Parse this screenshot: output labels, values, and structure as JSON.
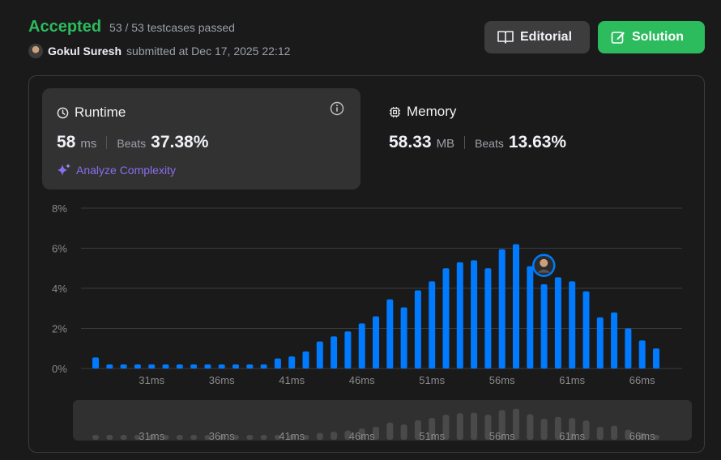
{
  "status": {
    "verdict": "Accepted",
    "tests": "53 / 53 testcases passed"
  },
  "submission": {
    "user": "Gokul Suresh",
    "submitted_at": "submitted at Dec 17, 2025 22:12"
  },
  "buttons": {
    "editorial": "Editorial",
    "solution": "Solution"
  },
  "runtime": {
    "title": "Runtime",
    "value": "58",
    "unit": "ms",
    "beats_label": "Beats",
    "beats": "37.38%",
    "analyze": "Analyze Complexity"
  },
  "memory": {
    "title": "Memory",
    "value": "58.33",
    "unit": "MB",
    "beats_label": "Beats",
    "beats": "13.63%"
  },
  "colors": {
    "accent_green": "#2cbb5d",
    "bar_blue": "#007aff",
    "analyze_purple": "#8a6ef0"
  },
  "chart_data": {
    "type": "bar",
    "xlabel": "",
    "ylabel": "",
    "ylim": [
      0,
      8
    ],
    "yticks": [
      "8%",
      "6%",
      "4%",
      "2%",
      "0%"
    ],
    "xtick_labels": [
      "31ms",
      "36ms",
      "41ms",
      "46ms",
      "51ms",
      "56ms",
      "61ms",
      "66ms"
    ],
    "xtick_values": [
      31,
      36,
      41,
      46,
      51,
      56,
      61,
      66
    ],
    "x": [
      27,
      28,
      29,
      30,
      31,
      32,
      33,
      34,
      35,
      36,
      37,
      38,
      39,
      40,
      41,
      42,
      43,
      44,
      45,
      46,
      47,
      48,
      49,
      50,
      51,
      52,
      53,
      54,
      55,
      56,
      57,
      58,
      59,
      60,
      61,
      62,
      63,
      64,
      65,
      66,
      67
    ],
    "values": [
      0.55,
      0.2,
      0.2,
      0.2,
      0.2,
      0.2,
      0.2,
      0.2,
      0.2,
      0.2,
      0.2,
      0.2,
      0.2,
      0.5,
      0.6,
      0.85,
      1.35,
      1.6,
      1.85,
      2.25,
      2.6,
      3.45,
      3.05,
      3.9,
      4.35,
      5.0,
      5.3,
      5.4,
      5.0,
      5.95,
      6.2,
      5.1,
      4.2,
      4.55,
      4.35,
      3.85,
      2.55,
      2.8,
      2.0,
      1.4,
      1.0
    ],
    "user_marker_x": 58,
    "grid": true
  }
}
